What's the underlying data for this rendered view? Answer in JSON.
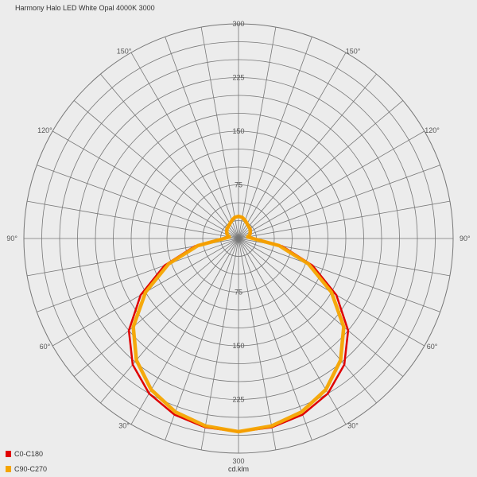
{
  "chart_data": {
    "type": "polar",
    "title": "Harmony Halo LED White Opal 4000K 3000",
    "unit_label": "cd.klm",
    "rmax": 300,
    "radial_ticks": [
      75,
      150,
      225,
      300
    ],
    "angle_labels": {
      "top": [
        "150°",
        "120°",
        "90°"
      ],
      "bottom": [
        "60°",
        "30°"
      ]
    },
    "legend": [
      "C0-C180",
      "C90-C270"
    ],
    "series": [
      {
        "name": "C0-C180",
        "color": "#e00000",
        "angles_deg": [
          0,
          10,
          20,
          30,
          40,
          50,
          60,
          70,
          80,
          90,
          100,
          110,
          120,
          130,
          140,
          150,
          160,
          170,
          180
        ],
        "values": [
          270,
          268,
          262,
          250,
          230,
          200,
          158,
          110,
          62,
          22,
          14,
          18,
          20,
          22,
          22,
          24,
          27,
          30,
          31
        ]
      },
      {
        "name": "C90-C270",
        "color": "#f5a500",
        "angles_deg": [
          0,
          10,
          20,
          30,
          40,
          50,
          60,
          70,
          80,
          90,
          100,
          110,
          120,
          130,
          140,
          150,
          160,
          170,
          180
        ],
        "values": [
          270,
          266,
          258,
          244,
          222,
          192,
          150,
          104,
          58,
          20,
          13,
          17,
          19,
          21,
          22,
          24,
          27,
          30,
          31
        ]
      }
    ]
  }
}
